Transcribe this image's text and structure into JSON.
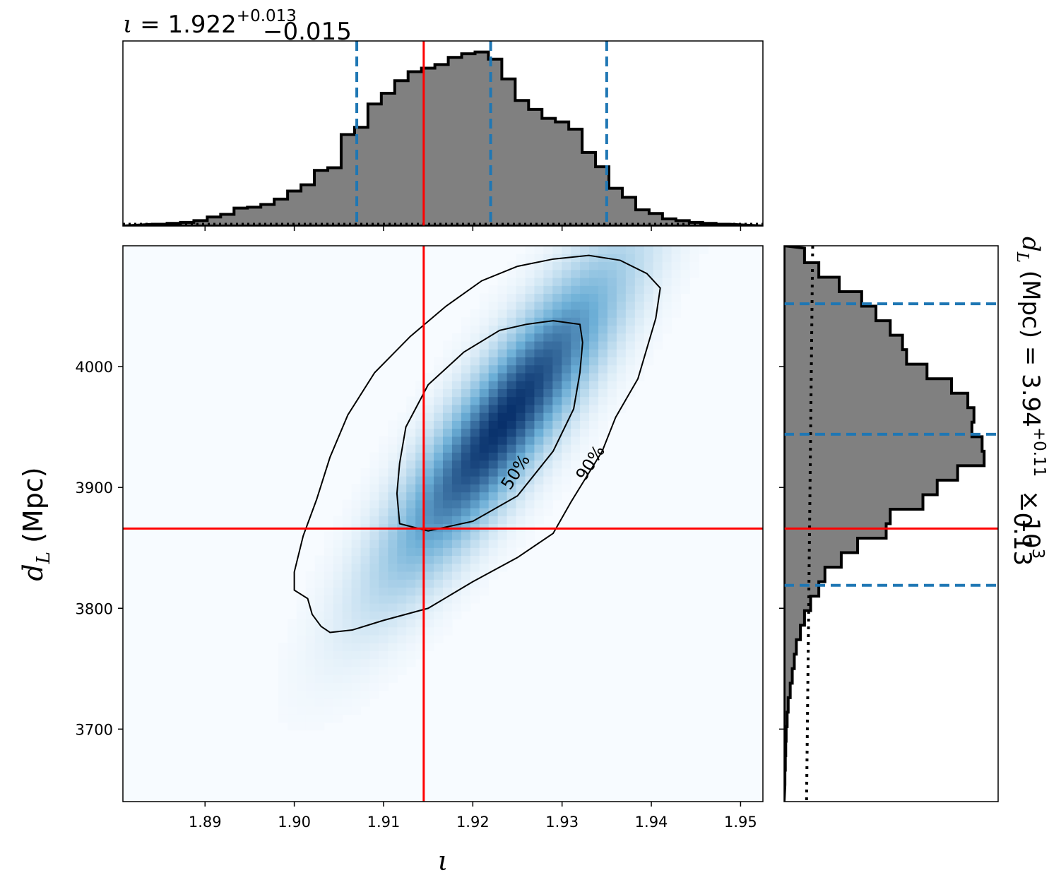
{
  "chart_data": [
    {
      "panel": "top-marginal",
      "type": "histogram",
      "title_value": "1.922",
      "title_plus": "+0.013",
      "title_minus": "−0.015",
      "title_symbol": "ι",
      "xlim": [
        1.8808,
        1.9525
      ],
      "injected_value": 1.9145,
      "quantiles": [
        1.907,
        1.922,
        1.935
      ],
      "bins": [
        1.885,
        1.8865,
        1.888,
        1.8895,
        1.891,
        1.8925,
        1.894,
        1.8955,
        1.897,
        1.8985,
        1.9,
        1.9015,
        1.903,
        1.9045,
        1.906,
        1.9075,
        1.909,
        1.9105,
        1.912,
        1.9135,
        1.915,
        1.9165,
        1.918,
        1.9195,
        1.921,
        1.9225,
        1.924,
        1.9255,
        1.927,
        1.9285,
        1.93,
        1.9315,
        1.933,
        1.9345,
        1.936,
        1.9375,
        1.939,
        1.9405,
        1.942,
        1.9435,
        1.945,
        1.9465,
        1.948
      ],
      "counts": [
        0.01,
        0.015,
        0.02,
        0.03,
        0.05,
        0.065,
        0.1,
        0.105,
        0.12,
        0.15,
        0.195,
        0.23,
        0.31,
        0.325,
        0.51,
        0.55,
        0.68,
        0.74,
        0.81,
        0.86,
        0.88,
        0.9,
        0.94,
        0.96,
        0.97,
        0.93,
        0.82,
        0.7,
        0.65,
        0.6,
        0.58,
        0.54,
        0.41,
        0.33,
        0.21,
        0.16,
        0.09,
        0.07,
        0.04,
        0.03,
        0.02,
        0.015,
        0.01
      ],
      "prior_level": 0.012
    },
    {
      "panel": "joint-2d",
      "type": "heatmap",
      "xlabel": "ι",
      "ylabel_symbol": "d",
      "ylabel_sub": "L",
      "ylabel_unit": " (Mpc)",
      "xlim": [
        1.8808,
        1.9525
      ],
      "ylim": [
        3640,
        4100
      ],
      "xticks": [
        "1.89",
        "1.90",
        "1.91",
        "1.92",
        "1.93",
        "1.94",
        "1.95"
      ],
      "xtick_values": [
        1.89,
        1.9,
        1.91,
        1.92,
        1.93,
        1.94,
        1.95
      ],
      "yticks": [
        "3700",
        "3800",
        "3900",
        "4000"
      ],
      "ytick_values": [
        3700,
        3800,
        3900,
        4000
      ],
      "injected": [
        1.9145,
        3866
      ],
      "density_peak": [
        1.9235,
        3955
      ],
      "contour_labels": [
        "50%",
        "90%"
      ],
      "contour_50": [
        [
          1.9118,
          3870
        ],
        [
          1.915,
          3864
        ],
        [
          1.92,
          3872
        ],
        [
          1.925,
          3893
        ],
        [
          1.929,
          3930
        ],
        [
          1.9313,
          3965
        ],
        [
          1.932,
          3995
        ],
        [
          1.9323,
          4020
        ],
        [
          1.932,
          4035
        ],
        [
          1.929,
          4038
        ],
        [
          1.926,
          4035
        ],
        [
          1.923,
          4030
        ],
        [
          1.919,
          4012
        ],
        [
          1.915,
          3985
        ],
        [
          1.9125,
          3950
        ],
        [
          1.9118,
          3920
        ],
        [
          1.9115,
          3895
        ]
      ],
      "contour_90": [
        [
          1.904,
          3780
        ],
        [
          1.9065,
          3782
        ],
        [
          1.91,
          3790
        ],
        [
          1.915,
          3800
        ],
        [
          1.92,
          3822
        ],
        [
          1.925,
          3842
        ],
        [
          1.929,
          3862
        ],
        [
          1.931,
          3888
        ],
        [
          1.933,
          3912
        ],
        [
          1.9345,
          3930
        ],
        [
          1.936,
          3958
        ],
        [
          1.9385,
          3990
        ],
        [
          1.9395,
          4015
        ],
        [
          1.9405,
          4040
        ],
        [
          1.941,
          4065
        ],
        [
          1.9395,
          4077
        ],
        [
          1.9365,
          4088
        ],
        [
          1.933,
          4092
        ],
        [
          1.929,
          4089
        ],
        [
          1.925,
          4083
        ],
        [
          1.921,
          4071
        ],
        [
          1.917,
          4050
        ],
        [
          1.913,
          4025
        ],
        [
          1.909,
          3995
        ],
        [
          1.906,
          3960
        ],
        [
          1.904,
          3925
        ],
        [
          1.9025,
          3890
        ],
        [
          1.901,
          3860
        ],
        [
          1.9,
          3830
        ],
        [
          1.9,
          3815
        ],
        [
          1.9015,
          3808
        ],
        [
          1.902,
          3795
        ],
        [
          1.903,
          3785
        ]
      ]
    },
    {
      "panel": "right-marginal",
      "type": "histogram",
      "orientation": "horizontal",
      "title_value": "3.94",
      "title_plus": "+0.11",
      "title_minus": "−0.13",
      "title_multiplier": " × 10",
      "title_exponent": "3",
      "title_symbol": "d",
      "title_sub": "L",
      "title_unit": " (Mpc) = ",
      "ylim": [
        3640,
        4100
      ],
      "injected_value": 3866,
      "quantiles": [
        3819,
        3944,
        4052
      ],
      "bins": [
        4092,
        4080,
        4068,
        4056,
        4044,
        4032,
        4020,
        4008,
        3996,
        3984,
        3972,
        3960,
        3948,
        3936,
        3924,
        3912,
        3900,
        3888,
        3876,
        3864,
        3852,
        3840,
        3828,
        3816,
        3804,
        3792,
        3780,
        3768,
        3756,
        3744,
        3732,
        3720,
        3708,
        3696,
        3684,
        3672,
        3660
      ],
      "counts": [
        0.1,
        0.17,
        0.27,
        0.38,
        0.45,
        0.52,
        0.58,
        0.6,
        0.7,
        0.82,
        0.9,
        0.93,
        0.92,
        0.97,
        0.98,
        0.85,
        0.75,
        0.68,
        0.52,
        0.5,
        0.36,
        0.28,
        0.2,
        0.17,
        0.13,
        0.1,
        0.08,
        0.06,
        0.05,
        0.04,
        0.03,
        0.02,
        0.015,
        0.01,
        0.008,
        0.006,
        0.004
      ],
      "prior_level": 0.1
    }
  ],
  "colors": {
    "hist_fill": "#808080",
    "hist_edge": "#000000",
    "injected_line": "#ff0000",
    "quantile_line": "#1f77b4",
    "colormap_low": "#f7fbff",
    "colormap_high": "#08306b"
  }
}
